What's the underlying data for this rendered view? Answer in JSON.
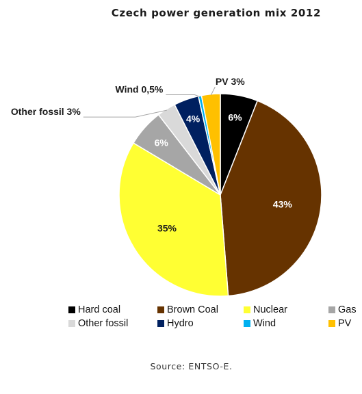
{
  "title": "Czech power generation mix 2012",
  "source": "Source: ENTSO-E.",
  "chart_data": {
    "type": "pie",
    "title": "Czech power generation mix 2012",
    "start_angle_deg": 0,
    "direction": "clockwise",
    "slices": [
      {
        "name": "Hard coal",
        "value": 6,
        "color": "#000000",
        "label": "6%",
        "label_color": "#ffffff",
        "label_position": "inside"
      },
      {
        "name": "Brown Coal",
        "value": 43,
        "color": "#663300",
        "label": "43%",
        "label_color": "#ffffff",
        "label_position": "inside"
      },
      {
        "name": "Nuclear",
        "value": 35,
        "color": "#ffff33",
        "label": "35%",
        "label_color": "#1a1a1a",
        "label_position": "inside"
      },
      {
        "name": "Gas",
        "value": 6,
        "color": "#a6a6a6",
        "label": "6%",
        "label_color": "#ffffff",
        "label_position": "inside"
      },
      {
        "name": "Other fossil",
        "value": 3,
        "color": "#d9d9d9",
        "label": "Other fossil 3%",
        "label_color": "#1a1a1a",
        "label_position": "outside-left"
      },
      {
        "name": "Hydro",
        "value": 4,
        "color": "#002060",
        "label": "4%",
        "label_color": "#ffffff",
        "label_position": "inside"
      },
      {
        "name": "Wind",
        "value": 0.5,
        "color": "#00b0f0",
        "label": "Wind 0,5%",
        "label_color": "#1a1a1a",
        "label_position": "outside-left"
      },
      {
        "name": "PV",
        "value": 3,
        "color": "#ffc000",
        "label": "PV 3%",
        "label_color": "#1a1a1a",
        "label_position": "outside-top"
      }
    ],
    "legend": {
      "position": "bottom",
      "rows": [
        [
          "Hard coal",
          "Brown Coal",
          "Nuclear",
          "Gas"
        ],
        [
          "Other fossil",
          "Hydro",
          "Wind",
          "PV"
        ]
      ]
    }
  }
}
